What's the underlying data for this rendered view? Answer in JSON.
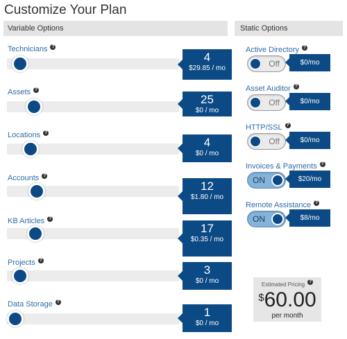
{
  "page": {
    "title": "Customize Your Plan"
  },
  "sections": {
    "variable": "Variable Options",
    "static": "Static Options"
  },
  "help_glyph": "?",
  "accent_color": "#0c4a85",
  "variable_options": [
    {
      "label": "Technicians",
      "value": "4",
      "price": "$29.85 / mo",
      "level": 0.03
    },
    {
      "label": "Assets",
      "value": "25",
      "price": "$0 / mo",
      "level": 0.12
    },
    {
      "label": "Locations",
      "value": "4",
      "price": "$0 / mo",
      "level": 0.1
    },
    {
      "label": "Accounts",
      "value": "12",
      "price": "$1.80 / mo",
      "level": 0.14
    },
    {
      "label": "KB Articles",
      "value": "17",
      "price": "$0.35 / mo",
      "level": 0.13
    },
    {
      "label": "Projects",
      "value": "3",
      "price": "$0 / mo",
      "level": 0.03
    },
    {
      "label": "Data Storage",
      "value": "1",
      "price": "$0 / mo",
      "level": 0.0
    }
  ],
  "static_options": [
    {
      "label": "Active Directory",
      "state": "Off",
      "price": "$0/mo"
    },
    {
      "label": "Asset Auditor",
      "state": "Off",
      "price": "$0/mo"
    },
    {
      "label": "HTTP/SSL",
      "state": "Off",
      "price": "$0/mo"
    },
    {
      "label": "Invoices & Payments",
      "state": "ON",
      "price": "$20/mo"
    },
    {
      "label": "Remote Assistance",
      "state": "ON",
      "price": "$8/mo"
    }
  ],
  "estimate": {
    "label": "Estimated Pricing",
    "currency": "$",
    "amount": "60.00",
    "period": "per month"
  }
}
